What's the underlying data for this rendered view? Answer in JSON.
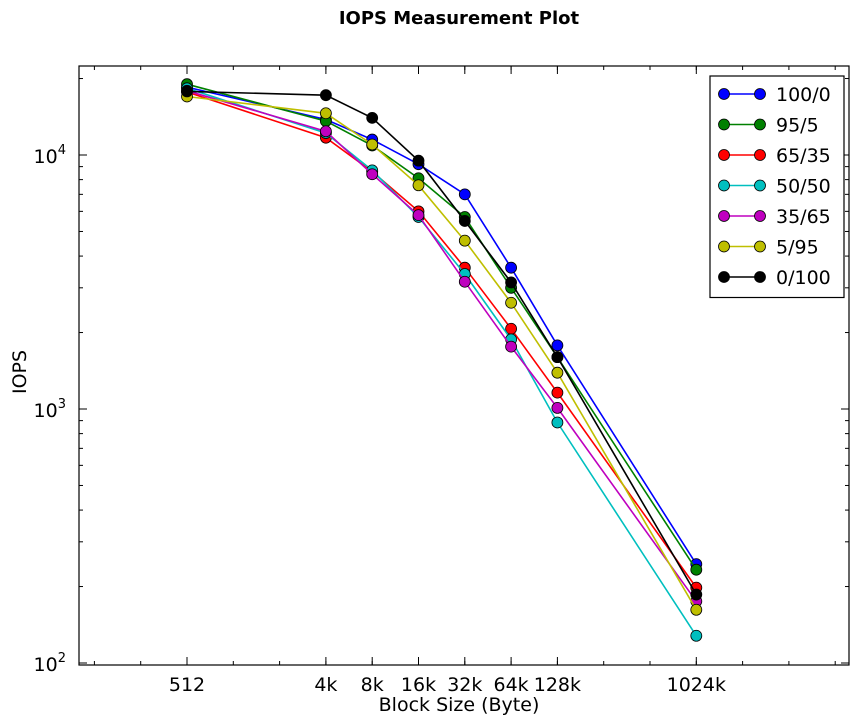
{
  "chart_data": {
    "type": "line",
    "title": "IOPS Measurement Plot",
    "xlabel": "Block Size (Byte)",
    "ylabel": "IOPS",
    "x_scale": "log",
    "y_scale": "log",
    "x_ticks": [
      "512",
      "4k",
      "8k",
      "16k",
      "32k",
      "64k",
      "128k",
      "1024k"
    ],
    "x_tick_values": [
      512,
      4096,
      8192,
      16384,
      32768,
      65536,
      131072,
      1048576
    ],
    "y_ticks": [
      {
        "value": 100,
        "base": "10",
        "exp": "2"
      },
      {
        "value": 1000,
        "base": "10",
        "exp": "3"
      },
      {
        "value": 10000,
        "base": "10",
        "exp": "4"
      }
    ],
    "legend_position": "top-right",
    "grid": false,
    "series": [
      {
        "name": "100/0",
        "color": "#0000ff",
        "x": [
          512,
          4096,
          8192,
          16384,
          32768,
          65536,
          131072,
          1048576
        ],
        "y": [
          18500,
          13800,
          11500,
          9200,
          7000,
          3600,
          1780,
          245
        ]
      },
      {
        "name": "95/5",
        "color": "#008000",
        "x": [
          512,
          4096,
          8192,
          16384,
          32768,
          65536,
          131072,
          1048576
        ],
        "y": [
          19000,
          13600,
          10900,
          8100,
          5700,
          3000,
          1600,
          233
        ]
      },
      {
        "name": "65/35",
        "color": "#ff0000",
        "x": [
          512,
          4096,
          8192,
          16384,
          32768,
          65536,
          131072,
          1048576
        ],
        "y": [
          17700,
          11700,
          8600,
          6000,
          3600,
          2070,
          1160,
          198
        ]
      },
      {
        "name": "50/50",
        "color": "#00bfbf",
        "x": [
          512,
          4096,
          8192,
          16384,
          32768,
          65536,
          131072,
          1048576
        ],
        "y": [
          18300,
          12200,
          8700,
          5700,
          3400,
          1880,
          885,
          128
        ]
      },
      {
        "name": "35/65",
        "color": "#bf00bf",
        "x": [
          512,
          4096,
          8192,
          16384,
          32768,
          65536,
          131072,
          1048576
        ],
        "y": [
          17900,
          12400,
          8400,
          5800,
          3170,
          1760,
          1010,
          175
        ]
      },
      {
        "name": "5/95",
        "color": "#bfbf00",
        "x": [
          512,
          4096,
          8192,
          16384,
          32768,
          65536,
          131072,
          1048576
        ],
        "y": [
          17000,
          14600,
          11000,
          7600,
          4600,
          2620,
          1390,
          162
        ]
      },
      {
        "name": "0/100",
        "color": "#000000",
        "x": [
          512,
          4096,
          8192,
          16384,
          32768,
          65536,
          131072,
          1048576
        ],
        "y": [
          17800,
          17200,
          14000,
          9500,
          5500,
          3150,
          1600,
          186
        ]
      }
    ]
  }
}
